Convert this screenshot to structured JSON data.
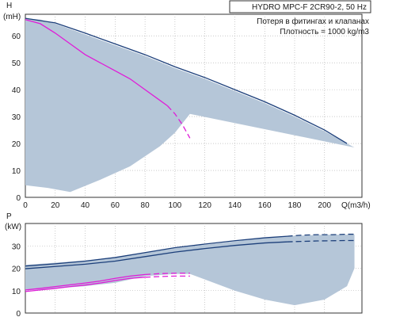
{
  "chart_data": [
    {
      "type": "line",
      "title": "HYDRO MPC-F 2CR90-2, 50 Hz",
      "annotations": [
        "Потеря в фитингах и клапанах",
        "Плотность = 1000 kg/m3"
      ],
      "ylabel_symbol": "H",
      "ylabel_unit": "(mH)",
      "xlabel": "Q(m3/h)",
      "xlim": [
        0,
        225
      ],
      "ylim": [
        0,
        68
      ],
      "xticks": [
        0,
        20,
        40,
        60,
        80,
        100,
        120,
        140,
        160,
        180,
        200
      ],
      "yticks": [
        0,
        10,
        20,
        30,
        40,
        50,
        60
      ],
      "grid": true,
      "colors": {
        "area": "#b5c6d8",
        "curve": "#1c3f7a",
        "system": "#e01cd8",
        "grid": "#aaaaaa"
      },
      "operating_area": {
        "upper": [
          [
            0,
            66.5
          ],
          [
            10,
            66
          ],
          [
            20,
            64.5
          ],
          [
            40,
            60.5
          ],
          [
            60,
            56.5
          ],
          [
            80,
            52.5
          ],
          [
            100,
            48
          ],
          [
            120,
            44
          ],
          [
            140,
            39.5
          ],
          [
            160,
            35
          ],
          [
            180,
            30
          ],
          [
            200,
            24.5
          ],
          [
            220,
            18.5
          ]
        ],
        "lower": [
          [
            0,
            4.5
          ],
          [
            15,
            3.5
          ],
          [
            30,
            2
          ],
          [
            50,
            6.5
          ],
          [
            70,
            11.5
          ],
          [
            90,
            19
          ],
          [
            100,
            24
          ],
          [
            110,
            31
          ]
        ]
      },
      "series": [
        {
          "name": "",
          "dashed": false,
          "x": [
            0,
            20,
            40,
            60,
            80,
            100,
            120,
            140,
            160,
            180,
            200,
            215
          ],
          "y": [
            66.5,
            64.8,
            61,
            57,
            53,
            48.5,
            44.5,
            40,
            35.5,
            30.5,
            25,
            20
          ]
        },
        {
          "name": "",
          "dashed": false,
          "x": [
            0,
            10,
            20,
            30,
            40,
            50,
            60,
            70,
            80,
            90,
            95
          ],
          "y": [
            66,
            64.5,
            61,
            57,
            53,
            50,
            47,
            44,
            40,
            36,
            34
          ]
        },
        {
          "name": "",
          "dashed": true,
          "x": [
            95,
            100,
            105,
            110
          ],
          "y": [
            34,
            31,
            27,
            22
          ]
        }
      ]
    },
    {
      "type": "line",
      "ylabel_symbol": "P",
      "ylabel_unit": "(kW)",
      "xlim": [
        0,
        225
      ],
      "ylim": [
        0,
        40
      ],
      "yticks": [
        0,
        10,
        20,
        30
      ],
      "grid": true,
      "operating_area": {
        "upper": [
          [
            0,
            21.5
          ],
          [
            20,
            22.5
          ],
          [
            40,
            23.5
          ],
          [
            60,
            25
          ],
          [
            80,
            27
          ],
          [
            100,
            29
          ],
          [
            120,
            30.5
          ],
          [
            140,
            32
          ],
          [
            160,
            33.5
          ],
          [
            180,
            34.5
          ],
          [
            200,
            35
          ],
          [
            210,
            35
          ],
          [
            220,
            35
          ]
        ],
        "lower": [
          [
            0,
            10
          ],
          [
            20,
            11
          ],
          [
            40,
            12
          ],
          [
            60,
            13.5
          ],
          [
            70,
            15
          ],
          [
            80,
            16.5
          ],
          [
            90,
            17
          ],
          [
            100,
            17.5
          ],
          [
            110,
            17.5
          ],
          [
            140,
            10
          ],
          [
            160,
            6
          ],
          [
            180,
            3.5
          ],
          [
            200,
            6
          ],
          [
            215,
            12
          ],
          [
            220,
            20
          ]
        ]
      },
      "series": [
        {
          "name": "",
          "dashed": false,
          "x": [
            0,
            20,
            40,
            60,
            80,
            100,
            120,
            140,
            160,
            175
          ],
          "y": [
            21,
            22,
            23.2,
            24.8,
            27,
            29.2,
            30.8,
            32.3,
            33.6,
            34.3
          ]
        },
        {
          "name": "",
          "dashed": true,
          "x": [
            175,
            185,
            195,
            205,
            215,
            220
          ],
          "y": [
            34.3,
            34.8,
            35,
            35,
            35.2,
            35.2
          ]
        },
        {
          "name": "",
          "dashed": false,
          "x": [
            0,
            20,
            40,
            60,
            80,
            100,
            120,
            140,
            160,
            175
          ],
          "y": [
            19.8,
            20.8,
            21.8,
            23.2,
            25.2,
            27.2,
            28.8,
            30.2,
            31.3,
            31.8
          ]
        },
        {
          "name": "",
          "dashed": true,
          "x": [
            175,
            185,
            195,
            205,
            215,
            220
          ],
          "y": [
            31.8,
            32,
            32.2,
            32.3,
            32.4,
            32.4
          ]
        },
        {
          "name": "",
          "dashed": false,
          "x": [
            0,
            10,
            20,
            30,
            40,
            50,
            60,
            70,
            80
          ],
          "y": [
            10.3,
            11,
            11.8,
            12.6,
            13.4,
            14.3,
            15.5,
            16.5,
            17.2
          ]
        },
        {
          "name": "",
          "dashed": true,
          "x": [
            80,
            90,
            100,
            110
          ],
          "y": [
            17.2,
            17.6,
            17.8,
            17.8
          ]
        },
        {
          "name": "",
          "dashed": false,
          "x": [
            0,
            10,
            20,
            30,
            40,
            50,
            60,
            70,
            80
          ],
          "y": [
            9.6,
            10.3,
            11,
            11.8,
            12.5,
            13.4,
            14.5,
            15.5,
            16
          ]
        },
        {
          "name": "",
          "dashed": true,
          "x": [
            80,
            90,
            100,
            110
          ],
          "y": [
            16,
            16.3,
            16.5,
            16.5
          ]
        }
      ]
    }
  ]
}
